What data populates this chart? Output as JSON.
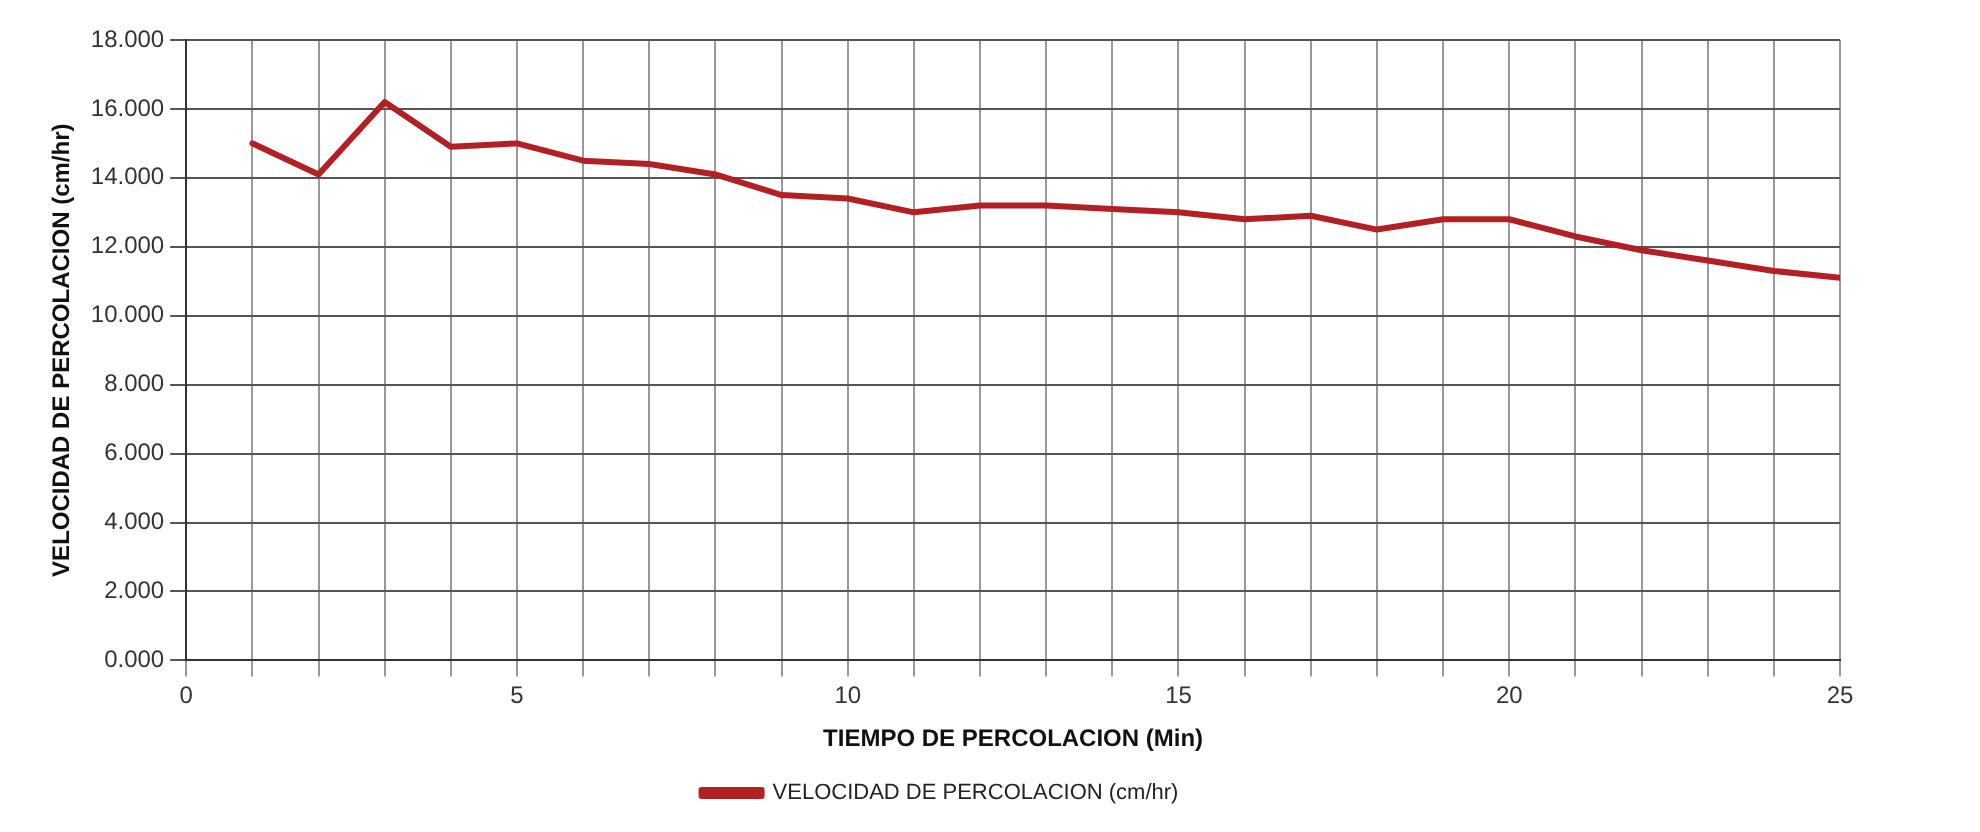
{
  "chart_data": {
    "type": "line",
    "xlabel": "TIEMPO DE PERCOLACION (Min)",
    "ylabel": "VELOCIDAD DE PERCOLACION (cm/hr)",
    "x": [
      1,
      2,
      3,
      4,
      5,
      6,
      7,
      8,
      9,
      10,
      11,
      12,
      13,
      14,
      15,
      16,
      17,
      18,
      19,
      20,
      21,
      22,
      23,
      24,
      25
    ],
    "series": [
      {
        "name": "VELOCIDAD DE PERCOLACION (cm/hr)",
        "color": "#b22024",
        "values": [
          15.0,
          14.1,
          16.2,
          14.9,
          15.0,
          14.5,
          14.4,
          14.1,
          13.5,
          13.4,
          13.0,
          13.2,
          13.2,
          13.1,
          13.0,
          12.8,
          12.9,
          12.5,
          12.8,
          12.8,
          12.3,
          11.9,
          11.6,
          11.3,
          11.1
        ]
      }
    ],
    "xlim": [
      0,
      25
    ],
    "xticks": [
      0,
      {
        "value": 1,
        "label": null
      },
      {
        "value": 2,
        "label": null
      },
      {
        "value": 3,
        "label": null
      },
      {
        "value": 4,
        "label": null
      },
      5,
      {
        "value": 6,
        "label": null
      },
      {
        "value": 7,
        "label": null
      },
      {
        "value": 8,
        "label": null
      },
      {
        "value": 9,
        "label": null
      },
      10,
      {
        "value": 11,
        "label": null
      },
      {
        "value": 12,
        "label": null
      },
      {
        "value": 13,
        "label": null
      },
      {
        "value": 14,
        "label": null
      },
      15,
      {
        "value": 16,
        "label": null
      },
      {
        "value": 17,
        "label": null
      },
      {
        "value": 18,
        "label": null
      },
      {
        "value": 19,
        "label": null
      },
      20,
      {
        "value": 21,
        "label": null
      },
      {
        "value": 22,
        "label": null
      },
      {
        "value": 23,
        "label": null
      },
      {
        "value": 24,
        "label": null
      },
      25
    ],
    "ylim": [
      0,
      18
    ],
    "yticks": [
      {
        "value": 0,
        "label": "0.000"
      },
      {
        "value": 2,
        "label": "2.000"
      },
      {
        "value": 4,
        "label": "4.000"
      },
      {
        "value": 6,
        "label": "6.000"
      },
      {
        "value": 8,
        "label": "8.000"
      },
      {
        "value": 10,
        "label": "10.000"
      },
      {
        "value": 12,
        "label": "12.000"
      },
      {
        "value": 14,
        "label": "14.000"
      },
      {
        "value": 16,
        "label": "16.000"
      },
      {
        "value": 18,
        "label": "18.000"
      }
    ],
    "grid": true,
    "legend": "bottom",
    "marker": "none",
    "line_style": "solid"
  }
}
